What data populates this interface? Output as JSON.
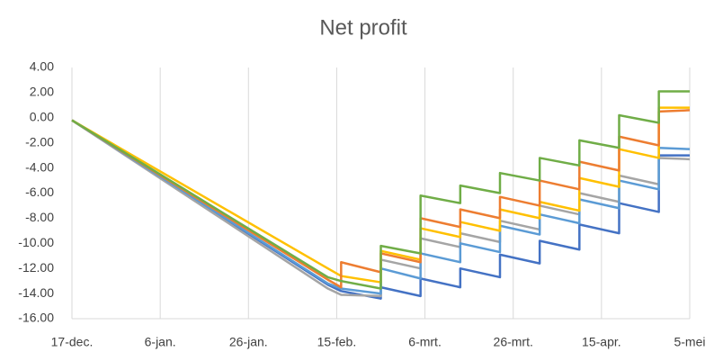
{
  "chart_data": {
    "type": "line",
    "title": "Net profit",
    "x": [
      0,
      58,
      61,
      61,
      70,
      70,
      79,
      79,
      88,
      88,
      97,
      97,
      106,
      106,
      115,
      115,
      124,
      124,
      133,
      133,
      140
    ],
    "xlim": [
      0,
      140
    ],
    "xticks": [
      {
        "value": 0,
        "label": "17-dec."
      },
      {
        "value": 20,
        "label": "6-jan."
      },
      {
        "value": 40,
        "label": "26-jan."
      },
      {
        "value": 60,
        "label": "15-feb."
      },
      {
        "value": 80,
        "label": "6-mrt."
      },
      {
        "value": 100,
        "label": "26-mrt."
      },
      {
        "value": 120,
        "label": "15-apr."
      },
      {
        "value": 140,
        "label": "5-mei"
      }
    ],
    "ylim": [
      -16,
      4
    ],
    "yticks": [
      {
        "value": 4,
        "label": "4.00"
      },
      {
        "value": 2,
        "label": "2.00"
      },
      {
        "value": 0,
        "label": "0.00"
      },
      {
        "value": -2,
        "label": "-2.00"
      },
      {
        "value": -4,
        "label": "-4.00"
      },
      {
        "value": -6,
        "label": "-6.00"
      },
      {
        "value": -8,
        "label": "-8.00"
      },
      {
        "value": -10,
        "label": "-10.00"
      },
      {
        "value": -12,
        "label": "-12.00"
      },
      {
        "value": -14,
        "label": "-14.00"
      },
      {
        "value": -16,
        "label": "-16.00"
      }
    ],
    "grid": "x",
    "series": [
      {
        "color": "#4472c4",
        "values": [
          -0.2,
          -13.3,
          -13.8,
          -13.8,
          -14.4,
          -13.5,
          -14.2,
          -12.8,
          -13.5,
          -12.0,
          -12.7,
          -10.9,
          -11.6,
          -9.8,
          -10.5,
          -8.5,
          -9.2,
          -6.8,
          -7.5,
          -3.0,
          -3.0
        ]
      },
      {
        "color": "#a5a5a5",
        "values": [
          -0.2,
          -13.6,
          -14.1,
          -14.1,
          -14.2,
          -11.3,
          -12.0,
          -9.6,
          -10.3,
          -9.2,
          -9.9,
          -8.2,
          -8.9,
          -7.0,
          -7.7,
          -6.0,
          -6.7,
          -4.6,
          -5.3,
          -3.2,
          -3.3
        ]
      },
      {
        "color": "#5b9bd5",
        "values": [
          -0.2,
          -13.2,
          -13.6,
          -13.6,
          -14.0,
          -12.0,
          -12.8,
          -10.8,
          -11.5,
          -10.0,
          -10.7,
          -8.6,
          -9.3,
          -7.7,
          -8.4,
          -6.5,
          -7.2,
          -5.0,
          -5.7,
          -2.4,
          -2.5
        ]
      },
      {
        "color": "#ffc000",
        "values": [
          -0.2,
          -12.0,
          -12.6,
          -12.6,
          -13.1,
          -10.6,
          -11.3,
          -8.8,
          -9.5,
          -8.3,
          -9.0,
          -7.3,
          -8.0,
          -6.7,
          -7.4,
          -4.8,
          -5.5,
          -2.5,
          -3.2,
          0.8,
          0.8
        ]
      },
      {
        "color": "#ed7d31",
        "values": [
          -0.2,
          -12.9,
          -13.5,
          -11.5,
          -12.3,
          -10.8,
          -11.5,
          -8.0,
          -8.7,
          -7.3,
          -8.0,
          -6.3,
          -7.0,
          -5.0,
          -5.7,
          -3.5,
          -4.2,
          -1.5,
          -2.2,
          0.5,
          0.6
        ]
      },
      {
        "color": "#70ad47",
        "values": [
          -0.2,
          -12.7,
          -13.0,
          -13.0,
          -13.6,
          -10.2,
          -10.8,
          -6.2,
          -6.8,
          -5.4,
          -6.0,
          -4.4,
          -5.0,
          -3.2,
          -3.8,
          -1.8,
          -2.4,
          0.2,
          -0.4,
          2.1,
          2.1
        ]
      }
    ]
  }
}
